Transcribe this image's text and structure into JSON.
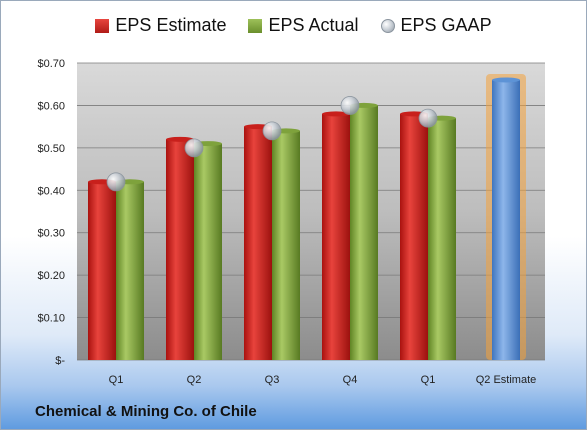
{
  "company": "Chemical & Mining Co. of Chile",
  "colors": {
    "estimate": "#c8201c",
    "actual": "#7ea23c",
    "gaap": "#b8bfc7",
    "forecast": "#5d93d6",
    "forecast_glow": "#f4a23c"
  },
  "chart_data": {
    "type": "bar",
    "title": "",
    "xlabel": "",
    "ylabel": "",
    "categories": [
      "Q1",
      "Q2",
      "Q3",
      "Q4",
      "Q1",
      "Q2 Estimate"
    ],
    "series": [
      {
        "name": "EPS Estimate",
        "values": [
          0.42,
          0.52,
          0.55,
          0.58,
          0.58,
          null
        ]
      },
      {
        "name": "EPS Actual",
        "values": [
          0.42,
          0.51,
          0.54,
          0.6,
          0.57,
          null
        ]
      },
      {
        "name": "EPS GAAP",
        "values": [
          0.42,
          0.5,
          0.54,
          0.6,
          0.57,
          null
        ]
      }
    ],
    "forecast": {
      "category": "Q2 Estimate",
      "value": 0.66
    },
    "ylim": [
      0,
      0.7
    ],
    "yticks": [
      0,
      0.1,
      0.2,
      0.3,
      0.4,
      0.5,
      0.6,
      0.7
    ],
    "ytick_labels": [
      "$-",
      "$0.10",
      "$0.20",
      "$0.30",
      "$0.40",
      "$0.50",
      "$0.60",
      "$0.70"
    ],
    "grid": true,
    "legend_position": "top"
  }
}
